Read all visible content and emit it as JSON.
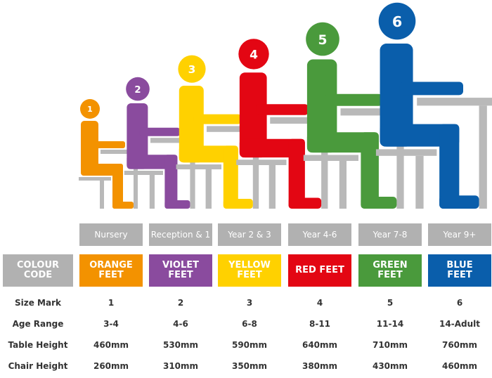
{
  "figures": [
    {
      "label": "1",
      "color": "#f39200"
    },
    {
      "label": "2",
      "color": "#8a4b9e"
    },
    {
      "label": "3",
      "color": "#ffd100"
    },
    {
      "label": "4",
      "color": "#e30613"
    },
    {
      "label": "5",
      "color": "#4a9a3c"
    },
    {
      "label": "6",
      "color": "#0a5eab"
    }
  ],
  "groups": [
    "Nursery",
    "Reception & 1",
    "Year 2 & 3",
    "Year 4-6",
    "Year 7-8",
    "Year 9+"
  ],
  "colour_code": {
    "label": "COLOUR CODE",
    "cells": [
      {
        "text": "ORANGE FEET",
        "color": "#f39200"
      },
      {
        "text": "VIOLET FEET",
        "color": "#8a4b9e"
      },
      {
        "text": "YELLOW FEET",
        "color": "#ffd100"
      },
      {
        "text": "RED FEET",
        "color": "#e30613"
      },
      {
        "text": "GREEN FEET",
        "color": "#4a9a3c"
      },
      {
        "text": "BLUE FEET",
        "color": "#0a5eab"
      }
    ]
  },
  "table": {
    "rows": [
      [
        "Size Mark",
        "1",
        "2",
        "3",
        "4",
        "5",
        "6"
      ],
      [
        "Age Range",
        "3-4",
        "4-6",
        "6-8",
        "8-11",
        "11-14",
        "14-Adult"
      ],
      [
        "Table Height",
        "460mm",
        "530mm",
        "590mm",
        "640mm",
        "710mm",
        "760mm"
      ],
      [
        "Chair Height",
        "260mm",
        "310mm",
        "350mm",
        "380mm",
        "430mm",
        "460mm"
      ]
    ]
  }
}
